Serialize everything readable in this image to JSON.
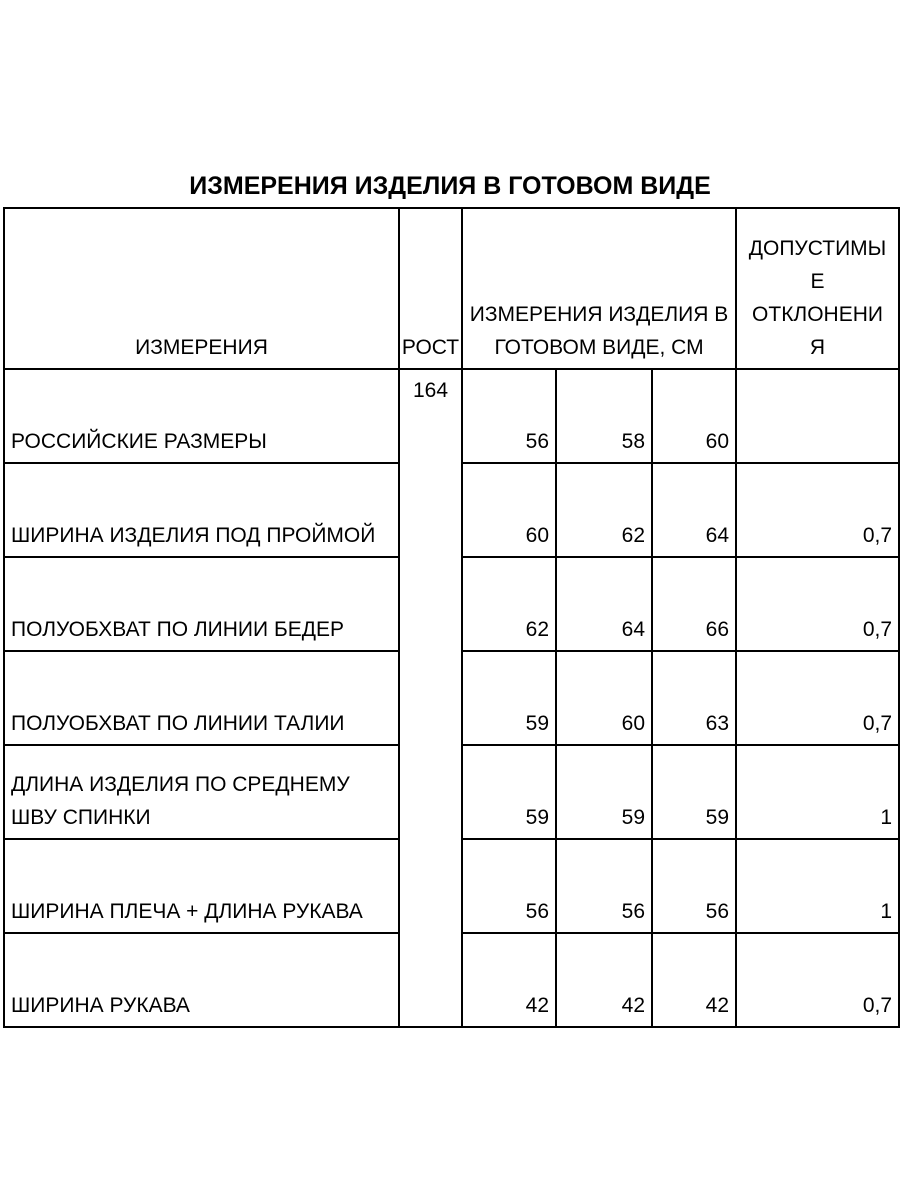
{
  "title": "ИЗМЕРЕНИЯ ИЗДЕЛИЯ В ГОТОВОМ ВИДЕ",
  "headers": {
    "measurement": "ИЗМЕРЕНИЯ",
    "height": "РОСТ",
    "values": "ИЗМЕРЕНИЯ ИЗДЕЛИЯ В ГОТОВОМ ВИДЕ, СМ",
    "tolerance": "ДОПУСТИМЫ Е ОТКЛОНЕНИ Я"
  },
  "height_value": "164",
  "rows": [
    {
      "name": "РОССИЙСКИЕ РАЗМЕРЫ",
      "v1": "56",
      "v2": "58",
      "v3": "60",
      "tol": ""
    },
    {
      "name": "ШИРИНА ИЗДЕЛИЯ ПОД ПРОЙМОЙ",
      "v1": "60",
      "v2": "62",
      "v3": "64",
      "tol": "0,7"
    },
    {
      "name": "ПОЛУОБХВАТ ПО ЛИНИИ БЕДЕР",
      "v1": "62",
      "v2": "64",
      "v3": "66",
      "tol": "0,7"
    },
    {
      "name": "ПОЛУОБХВАТ ПО ЛИНИИ ТАЛИИ",
      "v1": "59",
      "v2": "60",
      "v3": "63",
      "tol": "0,7"
    },
    {
      "name": "ДЛИНА ИЗДЕЛИЯ ПО СРЕДНЕМУ ШВУ СПИНКИ",
      "v1": "59",
      "v2": "59",
      "v3": "59",
      "tol": "1"
    },
    {
      "name": "ШИРИНА ПЛЕЧА + ДЛИНА РУКАВА",
      "v1": "56",
      "v2": "56",
      "v3": "56",
      "tol": "1"
    },
    {
      "name": "ШИРИНА РУКАВА",
      "v1": "42",
      "v2": "42",
      "v3": "42",
      "tol": "0,7"
    }
  ]
}
